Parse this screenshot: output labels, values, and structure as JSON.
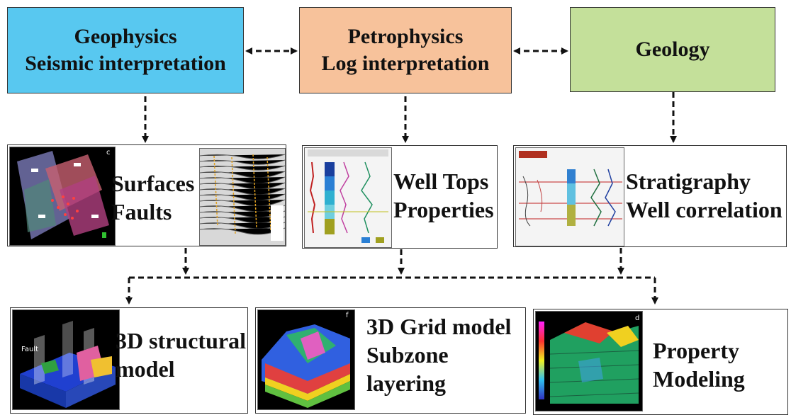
{
  "top": {
    "geophysics": {
      "line1": "Geophysics",
      "line2": "Seismic interpretation",
      "color": "#58c8f0"
    },
    "petrophysics": {
      "line1": "Petrophysics",
      "line2": "Log interpretation",
      "color": "#f7c29b"
    },
    "geology": {
      "line1": "Geology",
      "color": "#c4e09a"
    }
  },
  "middle": {
    "surfaces": {
      "line1": "Surfaces",
      "line2": "Faults",
      "thumb_tag": "c"
    },
    "welltops": {
      "line1": "Well Tops",
      "line2": "Properties"
    },
    "stratigraphy": {
      "line1": "Stratigraphy",
      "line2": "Well correlation"
    }
  },
  "bottom": {
    "structural": {
      "line1": "3D structural",
      "line2": "model",
      "thumb_text": "Fault"
    },
    "grid": {
      "line1": "3D Grid model",
      "line2": "Subzone",
      "line3": "layering",
      "thumb_tag": "f"
    },
    "property": {
      "line1": "Property",
      "line2": "Modeling",
      "thumb_tag": "d"
    }
  }
}
